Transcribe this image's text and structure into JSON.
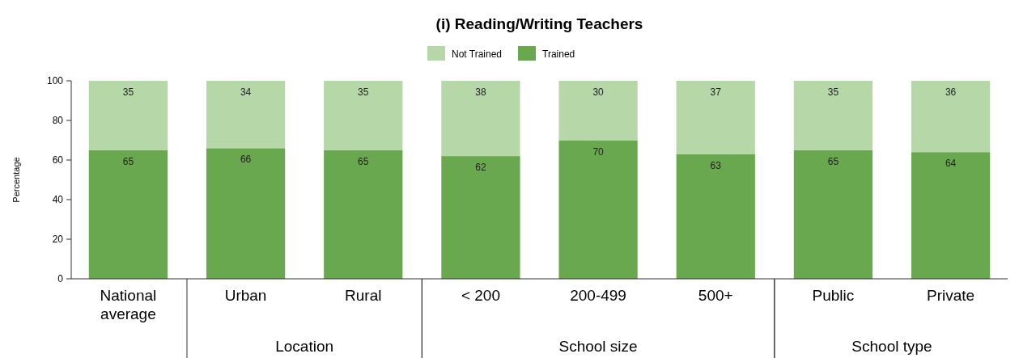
{
  "chart_data": {
    "type": "bar",
    "title": "(i) Reading/Writing Teachers",
    "ylabel": "Percentage",
    "categories": [
      "National average",
      "Urban",
      "Rural",
      "< 200",
      "200-499",
      "500+",
      "Public",
      "Private"
    ],
    "series": [
      {
        "name": "Trained",
        "color": "#6aa84f",
        "values": [
          65,
          66,
          65,
          62,
          70,
          63,
          65,
          64
        ]
      },
      {
        "name": "Not Trained",
        "color": "#b6d7a8",
        "values": [
          35,
          34,
          35,
          38,
          30,
          37,
          35,
          36
        ]
      }
    ],
    "stacked": true,
    "data_labels": true,
    "legend": "top",
    "grid": false,
    "ylim": [
      0,
      100
    ],
    "yticks": [
      0,
      20,
      40,
      60,
      80,
      100
    ],
    "annotations": [
      "Location",
      "School size",
      "School type"
    ]
  }
}
